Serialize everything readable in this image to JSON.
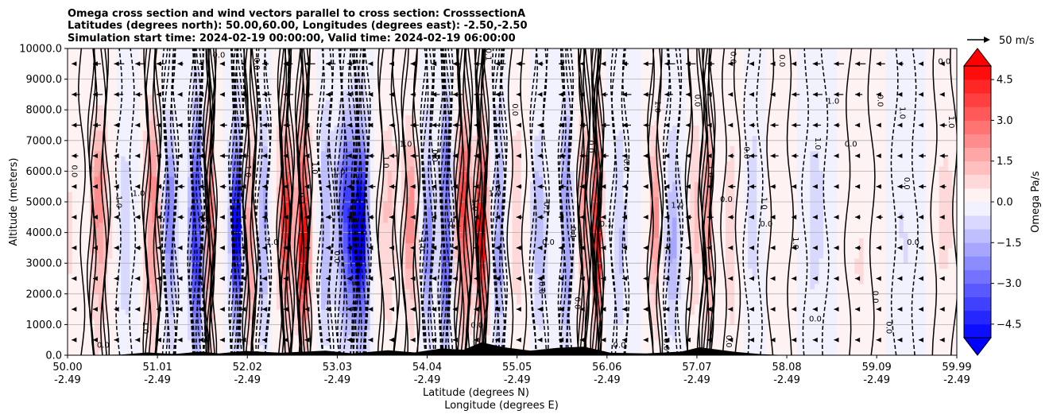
{
  "chart_data": {
    "type": "heatmap",
    "title_lines": [
      "Omega cross section and wind vectors parallel to cross section: CrosssectionA",
      "Latitudes (degrees north): 50.00,60.00, Longitudes (degrees east): -2.50,-2.50",
      "Simulation start time: 2024-02-19 00:00:00, Valid time: 2024-02-19 06:00:00"
    ],
    "xlabel_line1": "Latitude (degrees N)",
    "xlabel_line2": "Longitude (degrees E)",
    "ylabel": "Altitude (meters)",
    "xlim": [
      50.0,
      59.99
    ],
    "ylim": [
      0,
      10000
    ],
    "x_ticks": [
      {
        "lat": 50.0,
        "lat_label": "50.00",
        "lon_label": "-2.49"
      },
      {
        "lat": 51.01,
        "lat_label": "51.01",
        "lon_label": "-2.49"
      },
      {
        "lat": 52.02,
        "lat_label": "52.02",
        "lon_label": "-2.49"
      },
      {
        "lat": 53.03,
        "lat_label": "53.03",
        "lon_label": "-2.49"
      },
      {
        "lat": 54.04,
        "lat_label": "54.04",
        "lon_label": "-2.49"
      },
      {
        "lat": 55.05,
        "lat_label": "55.05",
        "lon_label": "-2.49"
      },
      {
        "lat": 56.06,
        "lat_label": "56.06",
        "lon_label": "-2.49"
      },
      {
        "lat": 57.07,
        "lat_label": "57.07",
        "lon_label": "-2.49"
      },
      {
        "lat": 58.08,
        "lat_label": "58.08",
        "lon_label": "-2.49"
      },
      {
        "lat": 59.09,
        "lat_label": "59.09",
        "lon_label": "-2.49"
      },
      {
        "lat": 59.99,
        "lat_label": "59.99",
        "lon_label": "-2.49"
      }
    ],
    "y_ticks": [
      {
        "value": 0,
        "label": "0.0"
      },
      {
        "value": 1000,
        "label": "1000.0"
      },
      {
        "value": 2000,
        "label": "2000.0"
      },
      {
        "value": 3000,
        "label": "3000.0"
      },
      {
        "value": 4000,
        "label": "4000.0"
      },
      {
        "value": 5000,
        "label": "5000.0"
      },
      {
        "value": 6000,
        "label": "6000.0"
      },
      {
        "value": 7000,
        "label": "7000.0"
      },
      {
        "value": 8000,
        "label": "8000.0"
      },
      {
        "value": 9000,
        "label": "9000.0"
      },
      {
        "value": 10000,
        "label": "10000.0"
      }
    ],
    "grid": true,
    "colorbar": {
      "label": "Omega Pa/s",
      "range": [
        -5.0,
        5.0
      ],
      "levels": [
        -5.0,
        -4.5,
        -4.0,
        -3.5,
        -3.0,
        -2.5,
        -2.0,
        -1.5,
        -1.0,
        -0.5,
        0.0,
        0.5,
        1.0,
        1.5,
        2.0,
        2.5,
        3.0,
        3.5,
        4.0,
        4.5,
        5.0
      ],
      "extend": "both",
      "colormap": "bwr",
      "ticks": [
        {
          "value": 4.5,
          "label": "4.5"
        },
        {
          "value": 3.0,
          "label": "3.0"
        },
        {
          "value": 1.5,
          "label": "1.5"
        },
        {
          "value": 0.0,
          "label": "0.0"
        },
        {
          "value": -1.5,
          "label": "−1.5"
        },
        {
          "value": -3.0,
          "label": "−3.0"
        },
        {
          "value": -4.5,
          "label": "−4.5"
        }
      ]
    },
    "quiver_key": {
      "label": "50 m/s",
      "speed": 50
    },
    "omega_columns": [
      {
        "lat": 50.05,
        "omega": 0.6,
        "width": 0.12
      },
      {
        "lat": 50.35,
        "omega": 2.2,
        "width": 0.1
      },
      {
        "lat": 50.65,
        "omega": -0.9,
        "width": 0.08
      },
      {
        "lat": 50.95,
        "omega": 2.6,
        "width": 0.08
      },
      {
        "lat": 51.15,
        "omega": -2.4,
        "width": 0.07
      },
      {
        "lat": 51.45,
        "omega": -5.0,
        "width": 0.07
      },
      {
        "lat": 51.6,
        "omega": 3.2,
        "width": 0.05
      },
      {
        "lat": 51.9,
        "omega": -4.8,
        "width": 0.06
      },
      {
        "lat": 52.05,
        "omega": 2.2,
        "width": 0.06
      },
      {
        "lat": 52.2,
        "omega": -2.0,
        "width": 0.06
      },
      {
        "lat": 52.45,
        "omega": 3.8,
        "width": 0.07
      },
      {
        "lat": 52.65,
        "omega": 4.8,
        "width": 0.07
      },
      {
        "lat": 52.9,
        "omega": -1.8,
        "width": 0.07
      },
      {
        "lat": 53.15,
        "omega": -3.6,
        "width": 0.12
      },
      {
        "lat": 53.3,
        "omega": -4.6,
        "width": 0.08
      },
      {
        "lat": 53.6,
        "omega": 1.2,
        "width": 0.1
      },
      {
        "lat": 53.85,
        "omega": 2.0,
        "width": 0.08
      },
      {
        "lat": 54.05,
        "omega": -2.4,
        "width": 0.06
      },
      {
        "lat": 54.25,
        "omega": -4.2,
        "width": 0.06
      },
      {
        "lat": 54.45,
        "omega": 3.6,
        "width": 0.08
      },
      {
        "lat": 54.65,
        "omega": 4.8,
        "width": 0.06
      },
      {
        "lat": 54.85,
        "omega": -2.2,
        "width": 0.06
      },
      {
        "lat": 55.05,
        "omega": 1.0,
        "width": 0.08
      },
      {
        "lat": 55.3,
        "omega": -1.4,
        "width": 0.08
      },
      {
        "lat": 55.6,
        "omega": -2.6,
        "width": 0.06
      },
      {
        "lat": 55.8,
        "omega": 2.4,
        "width": 0.05
      },
      {
        "lat": 55.95,
        "omega": 5.0,
        "width": 0.05
      },
      {
        "lat": 56.2,
        "omega": -1.2,
        "width": 0.08
      },
      {
        "lat": 56.6,
        "omega": 2.0,
        "width": 0.06
      },
      {
        "lat": 56.8,
        "omega": -1.6,
        "width": 0.08
      },
      {
        "lat": 57.05,
        "omega": 1.2,
        "width": 0.08
      },
      {
        "lat": 57.2,
        "omega": 2.4,
        "width": 0.05
      },
      {
        "lat": 57.45,
        "omega": 1.0,
        "width": 0.08
      },
      {
        "lat": 57.7,
        "omega": -0.9,
        "width": 0.08
      },
      {
        "lat": 58.0,
        "omega": 0.4,
        "width": 0.12
      },
      {
        "lat": 58.4,
        "omega": -0.8,
        "width": 0.12
      },
      {
        "lat": 58.9,
        "omega": 0.6,
        "width": 0.14
      },
      {
        "lat": 59.4,
        "omega": -0.5,
        "width": 0.12
      },
      {
        "lat": 59.85,
        "omega": 0.7,
        "width": 0.12
      }
    ],
    "terrain": [
      {
        "lat": 50.0,
        "height": 0
      },
      {
        "lat": 50.6,
        "height": 20
      },
      {
        "lat": 50.9,
        "height": 90
      },
      {
        "lat": 51.2,
        "height": 40
      },
      {
        "lat": 51.5,
        "height": 120
      },
      {
        "lat": 51.7,
        "height": 60
      },
      {
        "lat": 52.0,
        "height": 140
      },
      {
        "lat": 52.4,
        "height": 80
      },
      {
        "lat": 52.9,
        "height": 150
      },
      {
        "lat": 53.2,
        "height": 60
      },
      {
        "lat": 53.6,
        "height": 160
      },
      {
        "lat": 53.9,
        "height": 90
      },
      {
        "lat": 54.2,
        "height": 220
      },
      {
        "lat": 54.45,
        "height": 180
      },
      {
        "lat": 54.65,
        "height": 420
      },
      {
        "lat": 54.9,
        "height": 260
      },
      {
        "lat": 55.2,
        "height": 150
      },
      {
        "lat": 55.5,
        "height": 240
      },
      {
        "lat": 55.8,
        "height": 280
      },
      {
        "lat": 56.1,
        "height": 80
      },
      {
        "lat": 56.5,
        "height": 60
      },
      {
        "lat": 56.9,
        "height": 120
      },
      {
        "lat": 57.1,
        "height": 260
      },
      {
        "lat": 57.5,
        "height": 110
      },
      {
        "lat": 57.8,
        "height": 30
      },
      {
        "lat": 58.1,
        "height": 0
      },
      {
        "lat": 59.99,
        "height": 0
      }
    ],
    "contour_labels": [
      {
        "lat": 50.4,
        "alt": 250,
        "text": "0.0"
      },
      {
        "lat": 50.05,
        "alt": 6000,
        "text": "0.0"
      },
      {
        "lat": 50.55,
        "alt": 5000,
        "text": "1.0"
      },
      {
        "lat": 50.8,
        "alt": 5200,
        "text": "1.0"
      },
      {
        "lat": 50.85,
        "alt": 900,
        "text": "1.0"
      },
      {
        "lat": 51.5,
        "alt": 4300,
        "text": "0.1"
      },
      {
        "lat": 51.7,
        "alt": 9700,
        "text": "0.0"
      },
      {
        "lat": 52.1,
        "alt": 9500,
        "text": "0.0"
      },
      {
        "lat": 52.0,
        "alt": 6000,
        "text": "1.0"
      },
      {
        "lat": 52.3,
        "alt": 3600,
        "text": "1.0"
      },
      {
        "lat": 52.6,
        "alt": 5100,
        "text": "0.1"
      },
      {
        "lat": 52.75,
        "alt": 6100,
        "text": "1.0"
      },
      {
        "lat": 53.05,
        "alt": 5900,
        "text": "1.0"
      },
      {
        "lat": 53.0,
        "alt": 3200,
        "text": "0.0"
      },
      {
        "lat": 53.55,
        "alt": 6300,
        "text": "1.0"
      },
      {
        "lat": 53.8,
        "alt": 6800,
        "text": "1.0"
      },
      {
        "lat": 53.95,
        "alt": 3600,
        "text": "1.0"
      },
      {
        "lat": 54.1,
        "alt": 6500,
        "text": "0.0"
      },
      {
        "lat": 54.35,
        "alt": 4200,
        "text": "0.1"
      },
      {
        "lat": 54.7,
        "alt": 9800,
        "text": "0.1"
      },
      {
        "lat": 54.55,
        "alt": 4900,
        "text": "1.0"
      },
      {
        "lat": 54.8,
        "alt": 5200,
        "text": "1.0"
      },
      {
        "lat": 55.0,
        "alt": 8000,
        "text": "0.0"
      },
      {
        "lat": 55.35,
        "alt": 4800,
        "text": "0.1"
      },
      {
        "lat": 55.4,
        "alt": 3600,
        "text": "0.0"
      },
      {
        "lat": 55.85,
        "alt": 6800,
        "text": "0.0"
      },
      {
        "lat": 55.65,
        "alt": 4000,
        "text": "0.1"
      },
      {
        "lat": 56.05,
        "alt": 4200,
        "text": "0.1"
      },
      {
        "lat": 56.25,
        "alt": 6200,
        "text": "0.0"
      },
      {
        "lat": 56.6,
        "alt": 8100,
        "text": "1.0"
      },
      {
        "lat": 56.85,
        "alt": 4800,
        "text": "1.0"
      },
      {
        "lat": 57.05,
        "alt": 8300,
        "text": "0.0"
      },
      {
        "lat": 57.2,
        "alt": 6000,
        "text": "1.0"
      },
      {
        "lat": 57.4,
        "alt": 5000,
        "text": "0.0"
      },
      {
        "lat": 57.6,
        "alt": 6600,
        "text": "0.0"
      },
      {
        "lat": 57.8,
        "alt": 4950,
        "text": "1.0"
      },
      {
        "lat": 57.85,
        "alt": 4200,
        "text": "0.0"
      },
      {
        "lat": 58.15,
        "alt": 3650,
        "text": "1.0"
      },
      {
        "lat": 58.4,
        "alt": 6900,
        "text": "1.0"
      },
      {
        "lat": 58.8,
        "alt": 6800,
        "text": "0.0"
      },
      {
        "lat": 58.0,
        "alt": 9600,
        "text": "0.0"
      },
      {
        "lat": 57.45,
        "alt": 9700,
        "text": "0.0"
      },
      {
        "lat": 58.6,
        "alt": 8200,
        "text": "1.0"
      },
      {
        "lat": 59.1,
        "alt": 8300,
        "text": "0.0"
      },
      {
        "lat": 59.35,
        "alt": 7900,
        "text": "1.0"
      },
      {
        "lat": 59.85,
        "alt": 9500,
        "text": "0.0"
      },
      {
        "lat": 59.9,
        "alt": 7600,
        "text": "1.0"
      },
      {
        "lat": 59.4,
        "alt": 5600,
        "text": "0.0"
      },
      {
        "lat": 59.5,
        "alt": 3600,
        "text": "0.0"
      },
      {
        "lat": 59.05,
        "alt": 1900,
        "text": "0.0"
      },
      {
        "lat": 59.2,
        "alt": 900,
        "text": "0.0"
      },
      {
        "lat": 58.4,
        "alt": 1100,
        "text": "0.0"
      },
      {
        "lat": 57.4,
        "alt": 450,
        "text": "0.0"
      },
      {
        "lat": 56.7,
        "alt": 350,
        "text": "0.0"
      },
      {
        "lat": 56.2,
        "alt": 250,
        "text": "0.0"
      },
      {
        "lat": 55.7,
        "alt": 1700,
        "text": "0.0"
      },
      {
        "lat": 55.3,
        "alt": 2200,
        "text": "0.0"
      },
      {
        "lat": 54.6,
        "alt": 900,
        "text": "0.0"
      }
    ]
  }
}
